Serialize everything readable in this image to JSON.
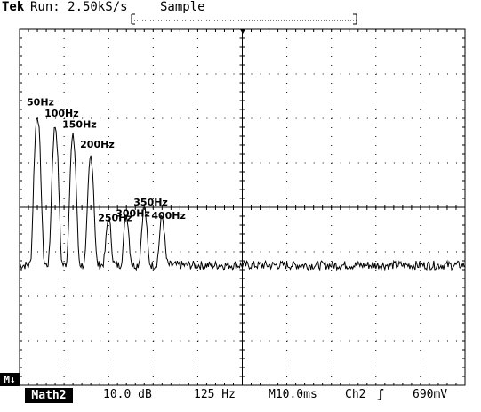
{
  "header": {
    "brand": "Tek",
    "run_status": "Run: 2.50kS/s",
    "mode": "Sample"
  },
  "markers": {
    "left_marker": "M↓"
  },
  "footer": {
    "math_channel": "Math2",
    "vertical_scale": "10.0 dB",
    "horizontal_scale": "125 Hz",
    "timebase": "M10.0ms",
    "trigger_source": "Ch2",
    "trigger_slope_symbol": "ʃ",
    "trigger_level": "690mV"
  },
  "chart_data": {
    "type": "line",
    "title": "",
    "xlabel": "",
    "ylabel": "",
    "xlim": [
      0,
      1250
    ],
    "ylim": [
      -80,
      0
    ],
    "grid": true,
    "grid_divisions": {
      "x": 10,
      "y": 8
    },
    "series": [
      {
        "peaks": [
          {
            "label": "50Hz",
            "x": 50,
            "y": -19.5
          },
          {
            "label": "100Hz",
            "x": 100,
            "y": -22.0
          },
          {
            "label": "150Hz",
            "x": 150,
            "y": -24.5
          },
          {
            "label": "200Hz",
            "x": 200,
            "y": -29.0
          },
          {
            "label": "250Hz",
            "x": 250,
            "y": -45.5
          },
          {
            "label": "300Hz",
            "x": 300,
            "y": -44.5
          },
          {
            "label": "350Hz",
            "x": 350,
            "y": -42.0
          },
          {
            "label": "400Hz",
            "x": 400,
            "y": -45.0
          }
        ],
        "noise_floor": -53.0
      }
    ]
  }
}
